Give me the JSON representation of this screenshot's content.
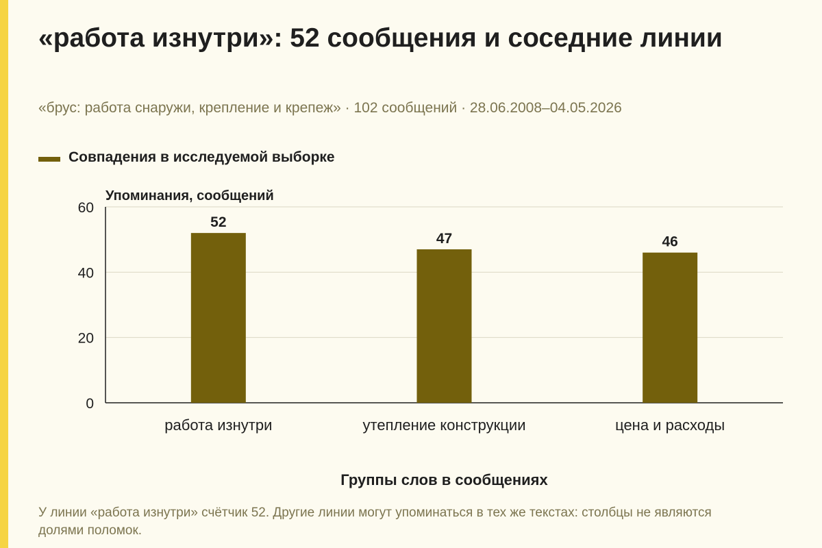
{
  "title": "«работа изнутри»: 52 сообщения и соседние линии",
  "subtitle": "«брус: работа снаружи, крепление и крепеж» · 102 сообщений · 28.06.2008–04.05.2026",
  "footnote": "У линии «работа изнутри» счётчик 52. Другие линии могут упоминаться в тех же текстах: столбцы не являются долями поломок.",
  "colors": {
    "accent": "#f6d443",
    "bar": "#73600c",
    "background": "#fdfbf0"
  },
  "chart_data": {
    "type": "bar",
    "categories": [
      "работа изнутри",
      "утепление конструкции",
      "цена и расходы"
    ],
    "series": [
      {
        "name": "Совпадения в исследуемой выборке",
        "values": [
          52,
          47,
          46
        ]
      }
    ],
    "xlabel": "Группы слов в сообщениях",
    "ylabel": "Упоминания, сообщений",
    "ylim": [
      0,
      60
    ],
    "yticks": [
      0,
      20,
      40,
      60
    ],
    "grid": true,
    "legend": "top-left",
    "data_labels": true
  }
}
